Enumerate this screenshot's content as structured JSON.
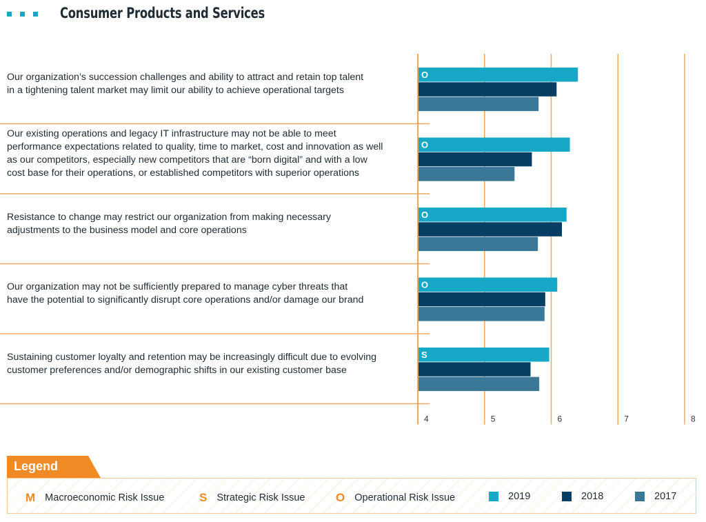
{
  "header": {
    "title": "Consumer Products and Services"
  },
  "chart_data": {
    "type": "bar",
    "orientation": "horizontal",
    "categories": [
      "Our organization's succession challenges and ability to attract and retain top talent in a tightening talent market may limit our ability to achieve operational targets",
      "Our existing operations and legacy IT infrastructure may not be able to meet performance expectations related to quality, time to market, cost and innovation as well as our competitors, especially new competitors that are “born digital” and with a low cost base for their operations, or established competitors with superior operations",
      "Resistance to change may restrict our organization from making necessary adjustments to the business model and core operations",
      "Our organization may not be sufficiently prepared to manage cyber threats that have the potential to significantly disrupt core operations and/or damage our brand",
      "Sustaining customer loyalty and retention may be increasingly difficult due to evolving customer preferences and/or demographic shifts in our existing customer base"
    ],
    "category_lines": [
      [
        "Our organization’s succession challenges and ability to attract and retain top talent",
        "in a tightening talent market may limit our ability to achieve operational targets"
      ],
      [
        "Our existing operations and legacy IT infrastructure may not be able to meet",
        "performance expectations related to quality, time to market, cost and innovation as well",
        "as our competitors, especially new competitors that are “born digital” and with a low",
        "cost base for their operations, or established competitors with superior operations"
      ],
      [
        "Resistance to change may restrict our organization from making necessary",
        "adjustments to the business model and core operations"
      ],
      [
        "Our organization may not be sufficiently prepared to manage cyber threats that",
        "have the potential to significantly disrupt core operations and/or damage our brand"
      ],
      [
        "Sustaining customer loyalty and retention may be increasingly difficult due to evolving",
        "customer preferences and/or demographic shifts in our existing customer base"
      ]
    ],
    "risk_type": [
      "O",
      "O",
      "O",
      "O",
      "S"
    ],
    "series": [
      {
        "name": "2019",
        "color": "#17a8c8",
        "values": [
          6.39,
          6.27,
          6.22,
          6.08,
          5.96
        ]
      },
      {
        "name": "2018",
        "color": "#063f63",
        "values": [
          6.07,
          5.7,
          6.15,
          5.9,
          5.68
        ]
      },
      {
        "name": "2017",
        "color": "#3b7897",
        "values": [
          5.8,
          5.44,
          5.79,
          5.89,
          5.81
        ]
      }
    ],
    "xlim": [
      4,
      8
    ],
    "xticks": [
      4,
      5,
      6,
      7,
      8
    ],
    "grid": true,
    "gridline_color": "#f0a860"
  },
  "legend": {
    "title": "Legend",
    "types": [
      {
        "letter": "M",
        "label": "Macroeconomic Risk Issue"
      },
      {
        "letter": "S",
        "label": "Strategic Risk Issue"
      },
      {
        "letter": "O",
        "label": "Operational Risk Issue"
      }
    ],
    "years": [
      {
        "label": "2019",
        "color": "#17a8c8"
      },
      {
        "label": "2018",
        "color": "#063f63"
      },
      {
        "label": "2017",
        "color": "#3b7897"
      }
    ]
  }
}
